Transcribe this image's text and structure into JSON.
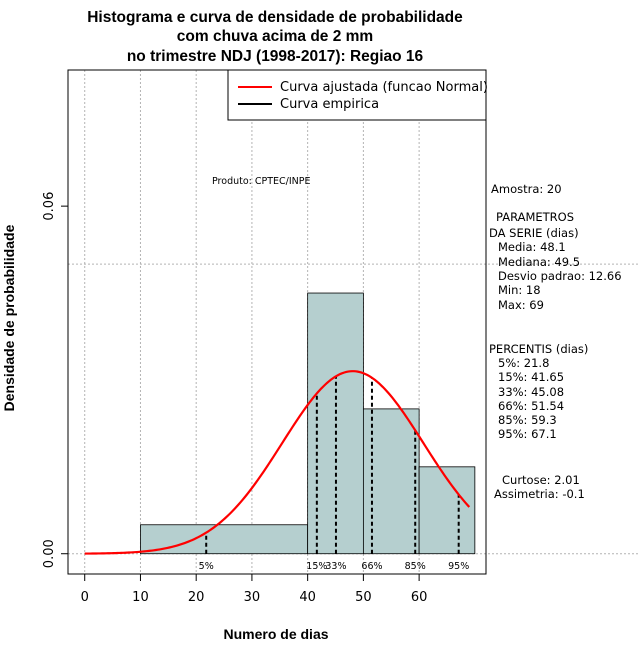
{
  "title_lines": [
    "Histograma e curva de densidade de probabilidade",
    "com chuva acima de 2 mm",
    "no trimestre NDJ (1998-2017): Regiao 16"
  ],
  "chart_data": {
    "type": "histogram",
    "xlabel": "Numero de dias",
    "ylabel": "Densidade de probabilidade",
    "xlim": [
      -3,
      72
    ],
    "ylim": [
      -0.0035,
      0.0835
    ],
    "x_ticks": [
      0,
      10,
      20,
      30,
      40,
      50,
      60
    ],
    "y_ticks": [
      0.0,
      0.06
    ],
    "y_tick_labels": [
      "0.00",
      "0.06"
    ],
    "grid": true,
    "grid_x": [
      0,
      10,
      20,
      30,
      40,
      50,
      60
    ],
    "grid_y": [
      0,
      0.05
    ],
    "bins": [
      {
        "start": 10,
        "end": 40,
        "density": 0.005
      },
      {
        "start": 40,
        "end": 50,
        "density": 0.045
      },
      {
        "start": 50,
        "end": 60,
        "density": 0.025
      },
      {
        "start": 60,
        "end": 70,
        "density": 0.015
      }
    ],
    "bar_color": "#b5cfcf",
    "normal_curve": {
      "name": "Curva ajustada (funcao Normal)",
      "mean": 48.1,
      "sd": 12.66,
      "x_start": 0,
      "x_end": 69,
      "color": "#ff0000"
    },
    "empirical_curve": {
      "name": "Curva empirica",
      "color": "#000000"
    },
    "percentiles": [
      {
        "label": "5%",
        "value": 21.8
      },
      {
        "label": "15%",
        "value": 41.65
      },
      {
        "label": "33%",
        "value": 45.08
      },
      {
        "label": "66%",
        "value": 51.54
      },
      {
        "label": "85%",
        "value": 59.3
      },
      {
        "label": "95%",
        "value": 67.1
      }
    ],
    "legend": {
      "position": "top-right",
      "entries": [
        "Curva ajustada (funcao Normal)",
        "Curva empirica"
      ]
    },
    "annotation": "Produto: CPTEC/INPE"
  },
  "side_panel": {
    "amostra": "Amostra: 20",
    "params_title_1": "PARAMETROS",
    "params_title_2": "DA SERIE (dias)",
    "params": [
      "Media: 48.1",
      "Mediana: 49.5",
      "Desvio padrao: 12.66",
      "Min: 18",
      "Max: 69"
    ],
    "percentis_title": "PERCENTIS (dias)",
    "percentis": [
      "5%: 21.8",
      "15%: 41.65",
      "33%: 45.08",
      "66%: 51.54",
      "85%: 59.3",
      "95%: 67.1"
    ],
    "curtose": "Curtose: 2.01",
    "assimetria": "Assimetria: -0.1"
  }
}
